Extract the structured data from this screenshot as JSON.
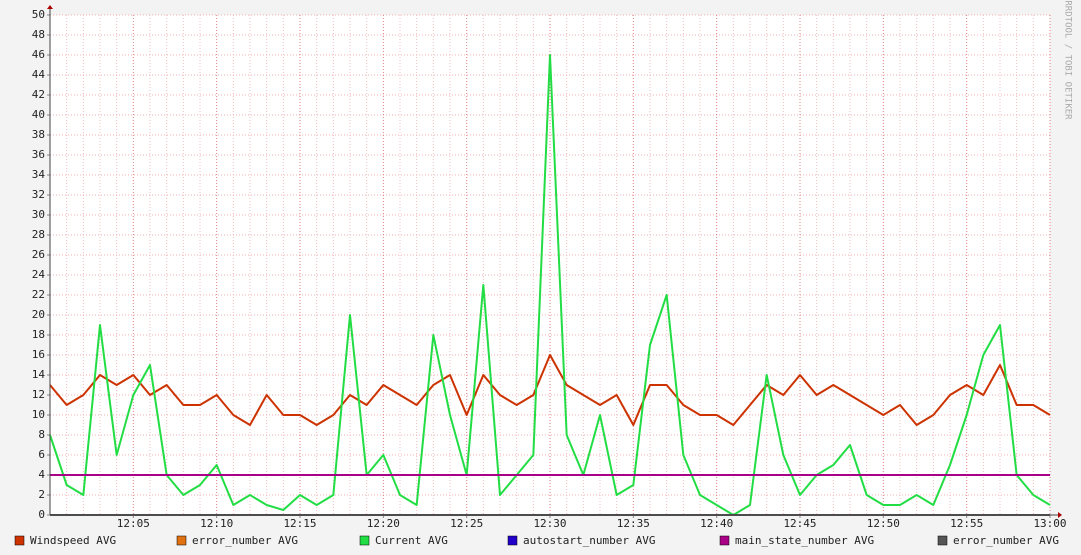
{
  "chart_data": {
    "type": "line",
    "side_label": "RRDTOOL / TOBI OETIKER",
    "x": [
      null,
      null,
      null,
      null,
      null,
      "12:05",
      null,
      null,
      null,
      null,
      "12:10",
      null,
      null,
      null,
      null,
      "12:15",
      null,
      null,
      null,
      null,
      "12:20",
      null,
      null,
      null,
      null,
      "12:25",
      null,
      null,
      null,
      null,
      "12:30",
      null,
      null,
      null,
      null,
      "12:35",
      null,
      null,
      null,
      null,
      "12:40",
      null,
      null,
      null,
      null,
      "12:45",
      null,
      null,
      null,
      null,
      "12:50",
      null,
      null,
      null,
      null,
      "12:55",
      null,
      null,
      null,
      null,
      "13:00"
    ],
    "ylim": [
      0,
      50
    ],
    "yticks": [
      0,
      2,
      4,
      6,
      8,
      10,
      12,
      14,
      16,
      18,
      20,
      22,
      24,
      26,
      28,
      30,
      32,
      34,
      36,
      38,
      40,
      42,
      44,
      46,
      48,
      50
    ],
    "grid": true,
    "series": [
      {
        "name": "Windspeed AVG",
        "color": "#cc3300",
        "values": [
          13,
          11,
          12,
          14,
          13,
          14,
          12,
          13,
          11,
          11,
          12,
          10,
          9,
          12,
          10,
          10,
          9,
          10,
          12,
          11,
          13,
          12,
          11,
          13,
          14,
          10,
          14,
          12,
          11,
          12,
          16,
          13,
          12,
          11,
          12,
          9,
          13,
          13,
          11,
          10,
          10,
          9,
          11,
          13,
          12,
          14,
          12,
          13,
          12,
          11,
          10,
          11,
          9,
          10,
          12,
          13,
          12,
          15,
          11,
          11,
          10
        ]
      },
      {
        "name": "error_number AVG",
        "color": "#e07010",
        "values": [
          0,
          0,
          0,
          0,
          0,
          0,
          0,
          0,
          0,
          0,
          0,
          0,
          0,
          0,
          0,
          0,
          0,
          0,
          0,
          0,
          0,
          0,
          0,
          0,
          0,
          0,
          0,
          0,
          0,
          0,
          0,
          0,
          0,
          0,
          0,
          0,
          0,
          0,
          0,
          0,
          0,
          0,
          0,
          0,
          0,
          0,
          0,
          0,
          0,
          0,
          0,
          0,
          0,
          0,
          0,
          0,
          0,
          0,
          0,
          0,
          0
        ]
      },
      {
        "name": "Current AVG",
        "color": "#22dd44",
        "values": [
          8,
          3,
          2,
          19,
          6,
          12,
          15,
          4,
          2,
          3,
          5,
          1,
          2,
          1,
          0.5,
          2,
          1,
          2,
          20,
          4,
          6,
          2,
          1,
          18,
          10,
          4,
          23,
          2,
          4,
          6,
          46,
          8,
          4,
          10,
          2,
          3,
          17,
          22,
          6,
          2,
          1,
          0,
          1,
          14,
          6,
          2,
          4,
          5,
          7,
          2,
          1,
          1,
          2,
          1,
          5,
          10,
          16,
          19,
          4,
          2,
          1
        ]
      },
      {
        "name": "autostart_number AVG",
        "color": "#2200cc",
        "values": [
          4,
          4,
          4,
          4,
          4,
          4,
          4,
          4,
          4,
          4,
          4,
          4,
          4,
          4,
          4,
          4,
          4,
          4,
          4,
          4,
          4,
          4,
          4,
          4,
          4,
          4,
          4,
          4,
          4,
          4,
          4,
          4,
          4,
          4,
          4,
          4,
          4,
          4,
          4,
          4,
          4,
          4,
          4,
          4,
          4,
          4,
          4,
          4,
          4,
          4,
          4,
          4,
          4,
          4,
          4,
          4,
          4,
          4,
          4,
          4,
          4
        ]
      },
      {
        "name": "main_state_number AVG",
        "color": "#aa0088",
        "values": [
          4,
          4,
          4,
          4,
          4,
          4,
          4,
          4,
          4,
          4,
          4,
          4,
          4,
          4,
          4,
          4,
          4,
          4,
          4,
          4,
          4,
          4,
          4,
          4,
          4,
          4,
          4,
          4,
          4,
          4,
          4,
          4,
          4,
          4,
          4,
          4,
          4,
          4,
          4,
          4,
          4,
          4,
          4,
          4,
          4,
          4,
          4,
          4,
          4,
          4,
          4,
          4,
          4,
          4,
          4,
          4,
          4,
          4,
          4,
          4,
          4
        ]
      },
      {
        "name": "error_number AVG",
        "color": "#555555",
        "values": [
          0,
          0,
          0,
          0,
          0,
          0,
          0,
          0,
          0,
          0,
          0,
          0,
          0,
          0,
          0,
          0,
          0,
          0,
          0,
          0,
          0,
          0,
          0,
          0,
          0,
          0,
          0,
          0,
          0,
          0,
          0,
          0,
          0,
          0,
          0,
          0,
          0,
          0,
          0,
          0,
          0,
          0,
          0,
          0,
          0,
          0,
          0,
          0,
          0,
          0,
          0,
          0,
          0,
          0,
          0,
          0,
          0,
          0,
          0,
          0,
          0
        ]
      }
    ]
  }
}
